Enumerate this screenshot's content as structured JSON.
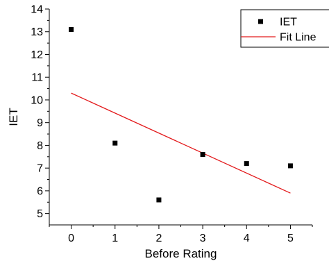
{
  "chart_data": {
    "type": "scatter",
    "xlabel": "Before Rating",
    "ylabel": "IET",
    "xlim": [
      -0.5,
      5.5
    ],
    "ylim": [
      4.5,
      14
    ],
    "x_ticks": [
      0,
      1,
      2,
      3,
      4,
      5
    ],
    "y_ticks": [
      5,
      6,
      7,
      8,
      9,
      10,
      11,
      12,
      13,
      14
    ],
    "grid": false,
    "legend_position": "top-right",
    "series": [
      {
        "name": "IET",
        "kind": "scatter",
        "marker": "square",
        "color": "#000000",
        "x": [
          0,
          1,
          2,
          3,
          4,
          5
        ],
        "y": [
          13.1,
          8.1,
          5.6,
          7.6,
          7.2,
          7.1
        ]
      },
      {
        "name": "Fit Line",
        "kind": "line",
        "color": "#e31a1c",
        "x": [
          0,
          5
        ],
        "y": [
          10.3,
          5.9
        ]
      }
    ]
  }
}
